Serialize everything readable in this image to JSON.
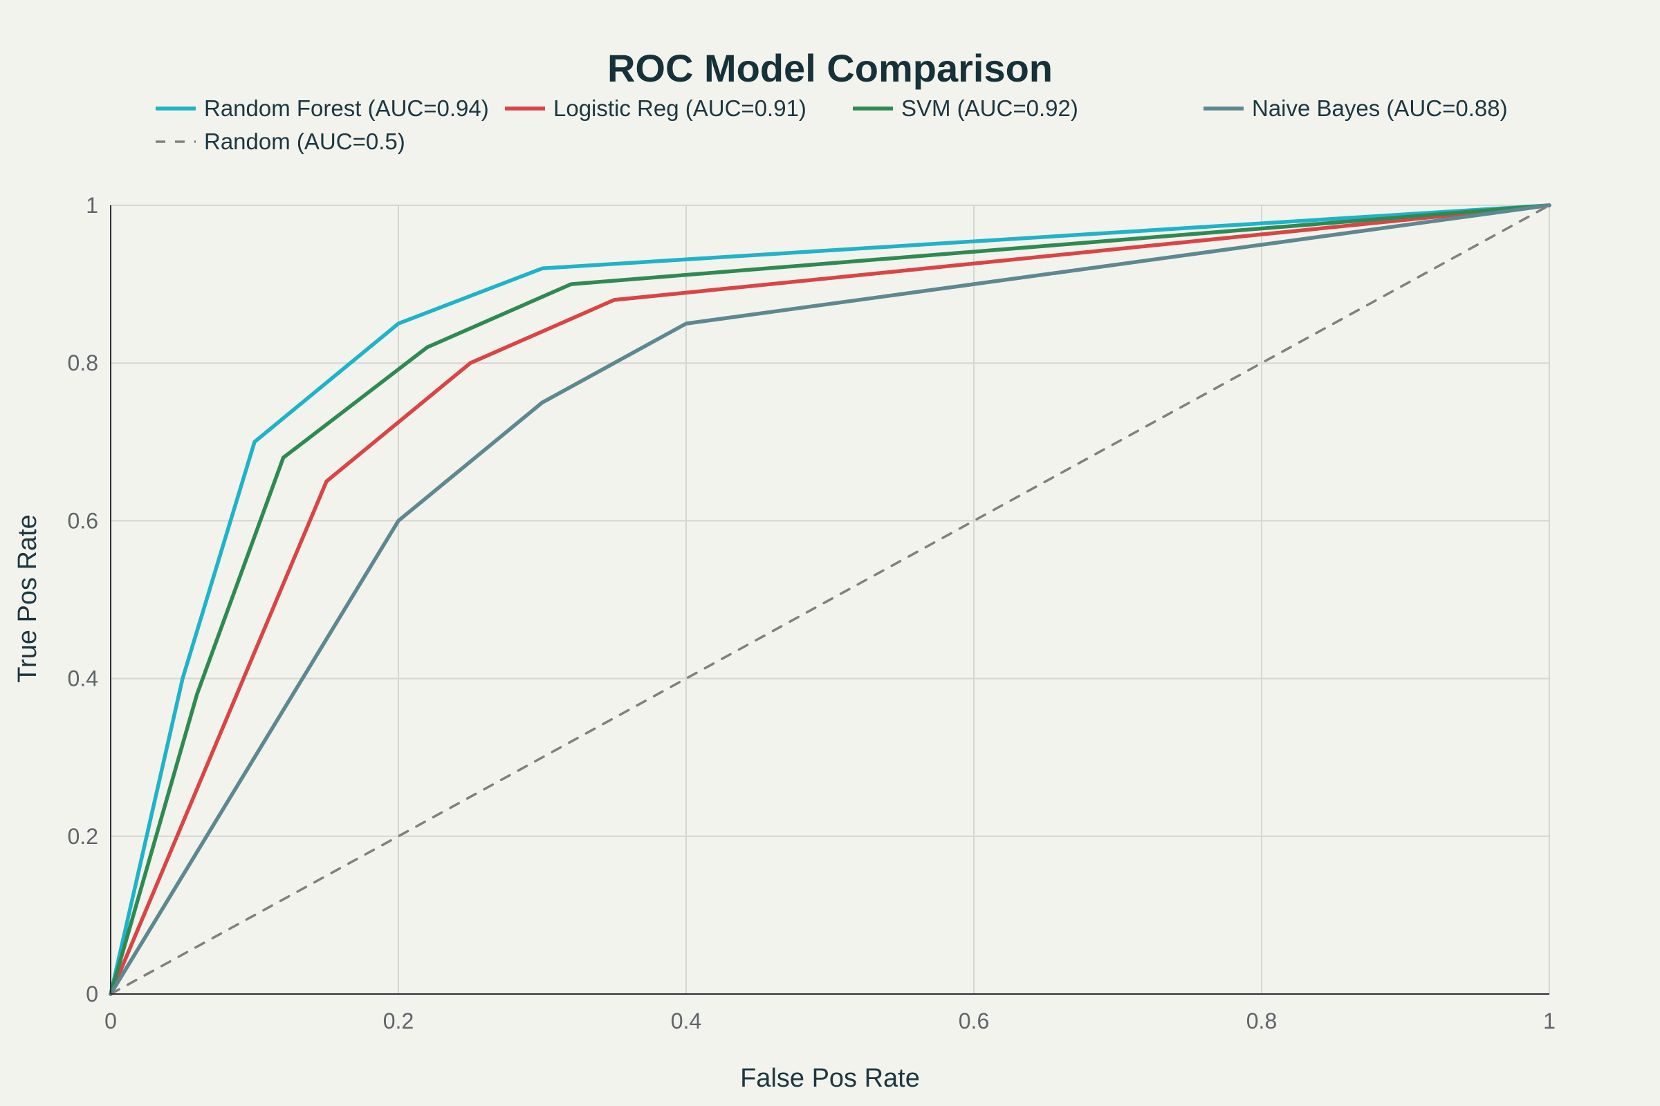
{
  "chart_data": {
    "type": "line",
    "title": "ROC Model Comparison",
    "xlabel": "False Pos Rate",
    "ylabel": "True Pos Rate",
    "xlim": [
      0,
      1
    ],
    "ylim": [
      0,
      1
    ],
    "xticks": [
      0,
      0.2,
      0.4,
      0.6,
      0.8,
      1
    ],
    "yticks": [
      0,
      0.2,
      0.4,
      0.6,
      0.8,
      1
    ],
    "xtick_labels": [
      "0",
      "0.2",
      "0.4",
      "0.6",
      "0.8",
      "1"
    ],
    "ytick_labels": [
      "0",
      "0.2",
      "0.4",
      "0.6",
      "0.8",
      "1"
    ],
    "grid": true,
    "legend_position": "top",
    "series": [
      {
        "name": "Random Forest (AUC=0.94)",
        "color": "#1fb3c8",
        "dash": "solid",
        "points": [
          [
            0,
            0
          ],
          [
            0.05,
            0.4
          ],
          [
            0.1,
            0.7
          ],
          [
            0.2,
            0.85
          ],
          [
            0.3,
            0.92
          ],
          [
            1,
            1
          ]
        ]
      },
      {
        "name": "Logistic Reg (AUC=0.91)",
        "color": "#d94545",
        "dash": "solid",
        "points": [
          [
            0,
            0
          ],
          [
            0.15,
            0.65
          ],
          [
            0.25,
            0.8
          ],
          [
            0.35,
            0.88
          ],
          [
            1,
            1
          ]
        ]
      },
      {
        "name": "SVM (AUC=0.92)",
        "color": "#2e8a52",
        "dash": "solid",
        "points": [
          [
            0,
            0
          ],
          [
            0.06,
            0.38
          ],
          [
            0.12,
            0.68
          ],
          [
            0.22,
            0.82
          ],
          [
            0.32,
            0.9
          ],
          [
            1,
            1
          ]
        ]
      },
      {
        "name": "Naive Bayes (AUC=0.88)",
        "color": "#5e8890",
        "dash": "solid",
        "points": [
          [
            0,
            0
          ],
          [
            0.2,
            0.6
          ],
          [
            0.3,
            0.75
          ],
          [
            0.4,
            0.85
          ],
          [
            1,
            1
          ]
        ]
      },
      {
        "name": "Random (AUC=0.5)",
        "color": "#808080",
        "dash": "dashed",
        "points": [
          [
            0,
            0
          ],
          [
            1,
            1
          ]
        ]
      }
    ]
  }
}
